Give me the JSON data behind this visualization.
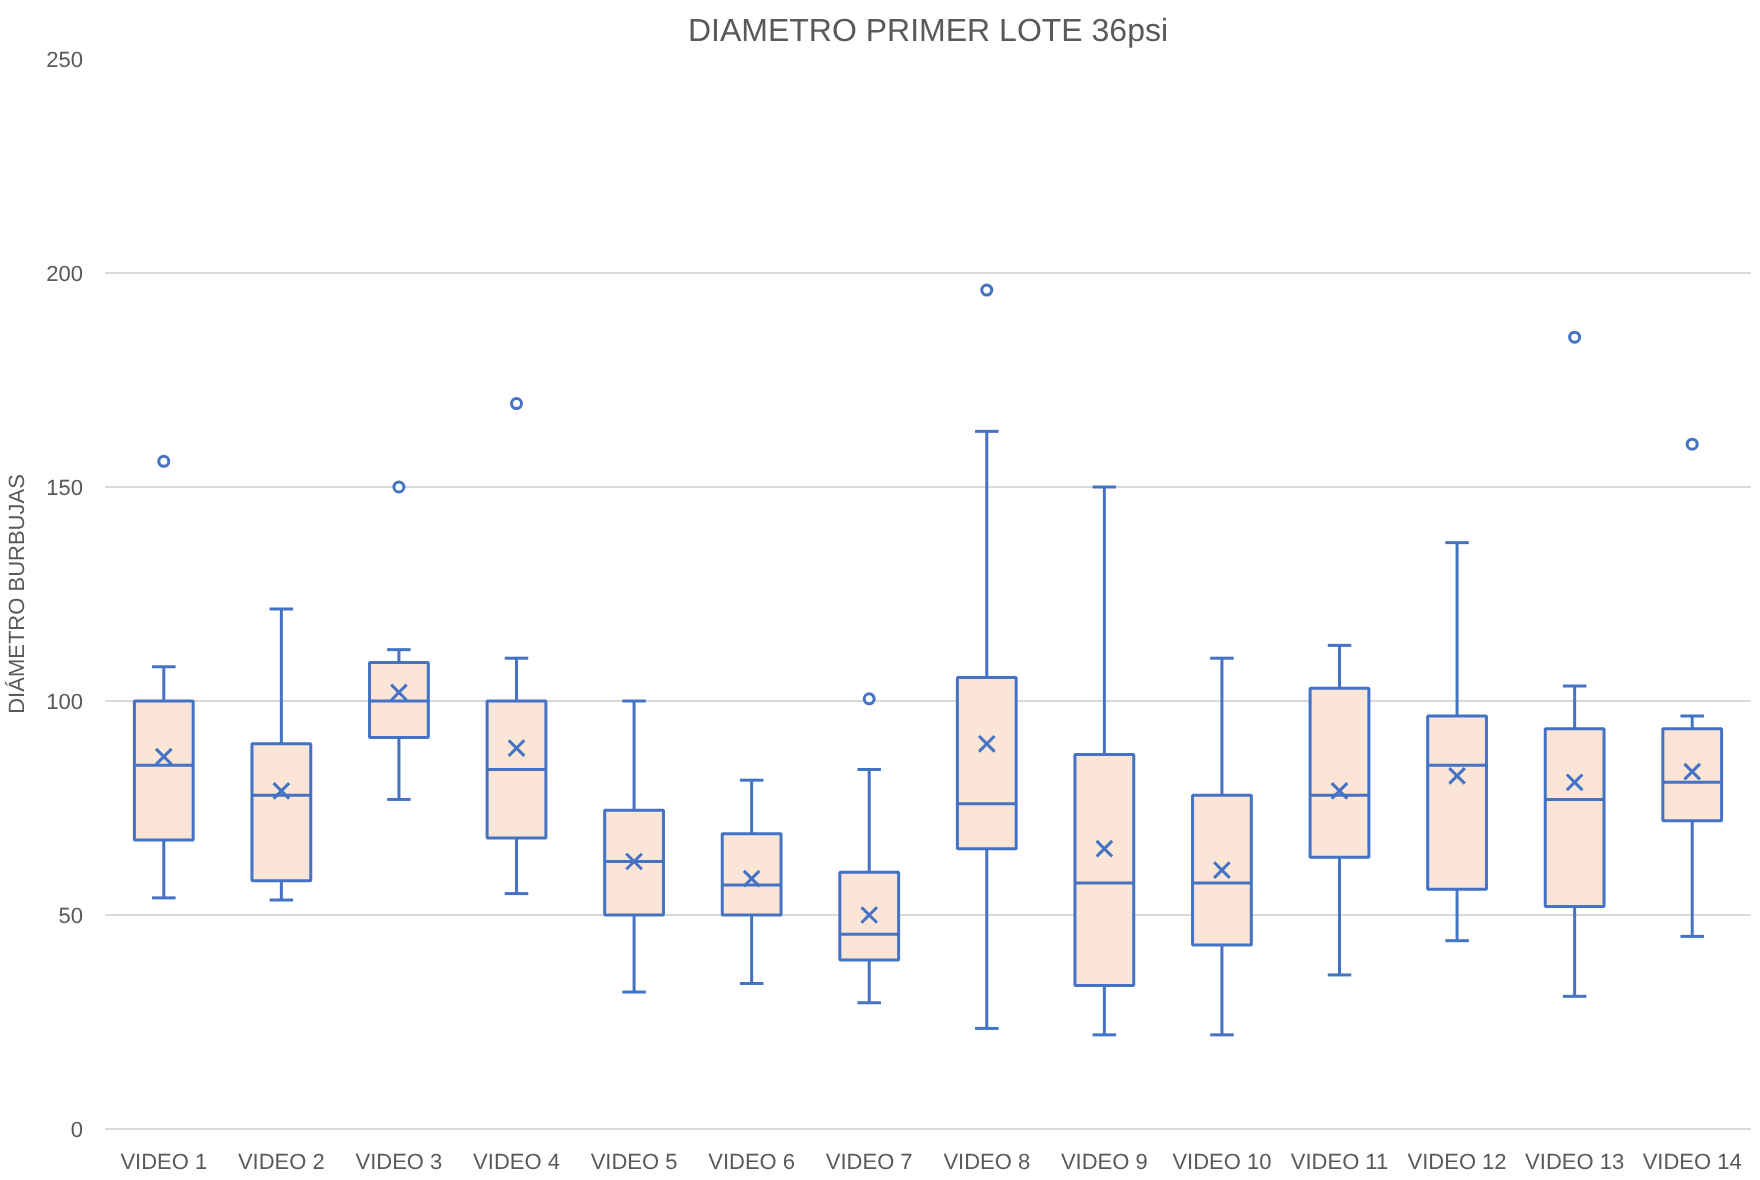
{
  "chart_data": {
    "type": "box",
    "title": "DIAMETRO PRIMER LOTE 36psi",
    "ylabel": "DIÁMETRO BURBUJAS",
    "categories": [
      "VIDEO 1",
      "VIDEO 2",
      "VIDEO 3",
      "VIDEO 4",
      "VIDEO 5",
      "VIDEO 6",
      "VIDEO 7",
      "VIDEO 8",
      "VIDEO 9",
      "VIDEO 10",
      "VIDEO 11",
      "VIDEO 12",
      "VIDEO 13",
      "VIDEO 14"
    ],
    "color": "#4472c4",
    "boxes": [
      {
        "low": 54,
        "q1": 67.5,
        "median": 85,
        "q3": 100,
        "high": 108,
        "mean": 87,
        "outliers": [
          156
        ]
      },
      {
        "low": 53.5,
        "q1": 58,
        "median": 78,
        "q3": 90,
        "high": 121.5,
        "mean": 79
      },
      {
        "low": 77,
        "q1": 91.5,
        "median": 100,
        "q3": 109,
        "high": 112,
        "mean": 102,
        "outliers": [
          150
        ]
      },
      {
        "low": 55,
        "q1": 68,
        "median": 84,
        "q3": 100,
        "high": 110,
        "mean": 89,
        "outliers": [
          169.5
        ]
      },
      {
        "low": 32,
        "q1": 50,
        "median": 62.5,
        "q3": 74.5,
        "high": 100,
        "mean": 62.5
      },
      {
        "low": 34,
        "q1": 50,
        "median": 57,
        "q3": 69,
        "high": 81.5,
        "mean": 58.5
      },
      {
        "low": 29.5,
        "q1": 39.5,
        "median": 45.5,
        "q3": 60,
        "high": 84,
        "mean": 50,
        "outliers": [
          100.5
        ]
      },
      {
        "low": 23.5,
        "q1": 65.5,
        "median": 76,
        "q3": 105.5,
        "high": 163,
        "mean": 90,
        "outliers": [
          196
        ]
      },
      {
        "low": 22,
        "q1": 33.5,
        "median": 57.5,
        "q3": 87.5,
        "high": 150,
        "mean": 65.5
      },
      {
        "low": 22,
        "q1": 43,
        "median": 57.5,
        "q3": 78,
        "high": 110,
        "mean": 60.5
      },
      {
        "low": 36,
        "q1": 63.5,
        "median": 78,
        "q3": 103,
        "high": 113,
        "mean": 79
      },
      {
        "low": 44,
        "q1": 56,
        "median": 85,
        "q3": 96.5,
        "high": 137,
        "mean": 82.5
      },
      {
        "low": 31,
        "q1": 52,
        "median": 77,
        "q3": 93.5,
        "high": 103.5,
        "mean": 81,
        "outliers": [
          185
        ]
      },
      {
        "low": 45,
        "q1": 72,
        "median": 81,
        "q3": 93.5,
        "high": 96.5,
        "mean": 83.5,
        "outliers": [
          160
        ]
      }
    ],
    "ylim": [
      0,
      250
    ],
    "yticks": [
      0,
      50,
      100,
      150,
      200,
      250
    ],
    "grid": "y"
  }
}
